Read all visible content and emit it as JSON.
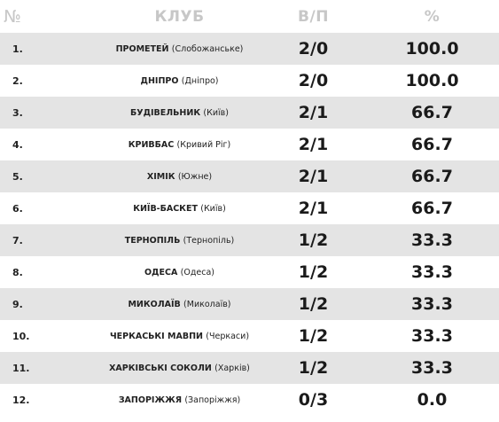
{
  "header": {
    "num": "№",
    "club": "КЛУБ",
    "wl": "В/П",
    "pct": "%"
  },
  "rows": [
    {
      "num": "1.",
      "club": "ПРОМЕТЕЙ",
      "city": "(Слобожанське)",
      "wl": "2/0",
      "pct": "100.0"
    },
    {
      "num": "2.",
      "club": "ДНІПРО",
      "city": "(Дніпро)",
      "wl": "2/0",
      "pct": "100.0"
    },
    {
      "num": "3.",
      "club": "БУДІВЕЛЬНИК",
      "city": "(Київ)",
      "wl": "2/1",
      "pct": "66.7"
    },
    {
      "num": "4.",
      "club": "КРИВБАС",
      "city": "(Кривий Ріг)",
      "wl": "2/1",
      "pct": "66.7"
    },
    {
      "num": "5.",
      "club": "ХІМІК",
      "city": "(Южне)",
      "wl": "2/1",
      "pct": "66.7"
    },
    {
      "num": "6.",
      "club": "КИЇВ-БАСКЕТ",
      "city": "(Київ)",
      "wl": "2/1",
      "pct": "66.7"
    },
    {
      "num": "7.",
      "club": "ТЕРНОПІЛЬ",
      "city": "(Тернопіль)",
      "wl": "1/2",
      "pct": "33.3"
    },
    {
      "num": "8.",
      "club": "ОДЕСА",
      "city": "(Одеса)",
      "wl": "1/2",
      "pct": "33.3"
    },
    {
      "num": "9.",
      "club": "МИКОЛАЇВ",
      "city": "(Миколаїв)",
      "wl": "1/2",
      "pct": "33.3"
    },
    {
      "num": "10.",
      "club": "ЧЕРКАСЬКІ МАВПИ",
      "city": "(Черкаси)",
      "wl": "1/2",
      "pct": "33.3"
    },
    {
      "num": "11.",
      "club": "ХАРКІВСЬКІ СОКОЛИ",
      "city": "(Харків)",
      "wl": "1/2",
      "pct": "33.3"
    },
    {
      "num": "12.",
      "club": "ЗАПОРІЖЖЯ",
      "city": "(Запоріжжя)",
      "wl": "0/3",
      "pct": "0.0"
    }
  ]
}
